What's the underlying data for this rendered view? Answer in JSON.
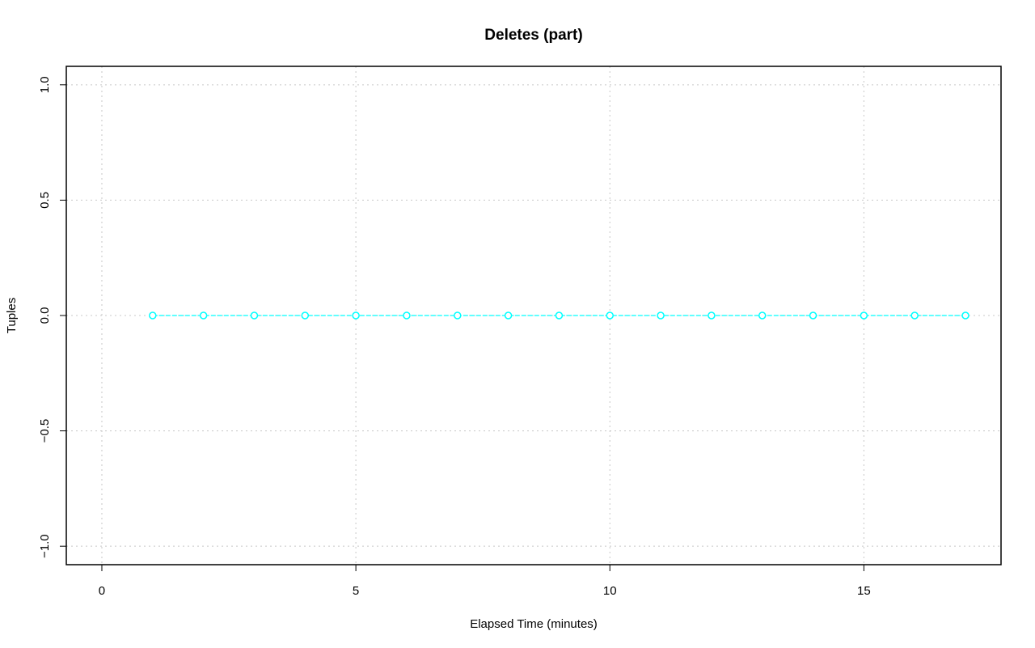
{
  "chart_data": {
    "type": "line",
    "title": "Deletes (part)",
    "xlabel": "Elapsed Time (minutes)",
    "ylabel": "Tuples",
    "xlim": [
      -0.7,
      17.7
    ],
    "ylim": [
      -1.08,
      1.08
    ],
    "xticks": [
      0,
      5,
      10,
      15
    ],
    "yticks": [
      -1.0,
      -0.5,
      0.0,
      0.5,
      1.0
    ],
    "xtick_labels": [
      "0",
      "5",
      "10",
      "15"
    ],
    "ytick_labels": [
      "−1.0",
      "−0.5",
      "0.0",
      "0.5",
      "1.0"
    ],
    "grid": true,
    "series": [
      {
        "color": "#00ffff",
        "marker": "open-circle",
        "x": [
          1,
          2,
          3,
          4,
          5,
          6,
          7,
          8,
          9,
          10,
          11,
          12,
          13,
          14,
          15,
          16,
          17
        ],
        "y": [
          0,
          0,
          0,
          0,
          0,
          0,
          0,
          0,
          0,
          0,
          0,
          0,
          0,
          0,
          0,
          0,
          0
        ]
      }
    ]
  }
}
